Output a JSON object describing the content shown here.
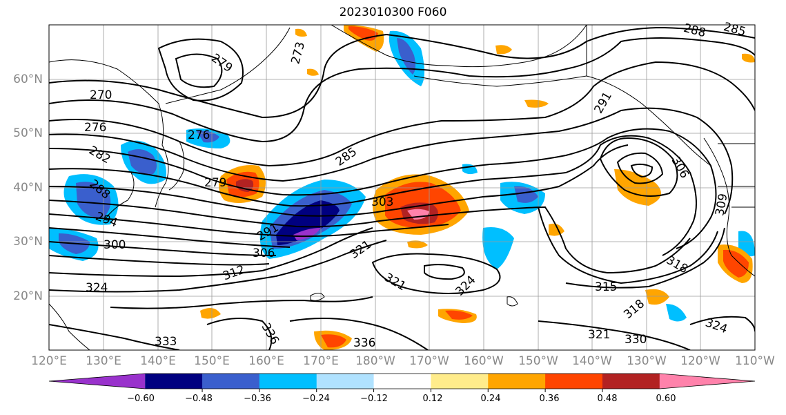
{
  "title": "2023010300 F060",
  "lat_labels": [
    "60°N",
    "50°N",
    "40°N",
    "30°N",
    "20°N"
  ],
  "lon_labels": [
    "120°E",
    "130°E",
    "140°E",
    "150°E",
    "160°E",
    "170°E",
    "180°W",
    "170°W",
    "160°W",
    "150°W",
    "140°W",
    "130°W",
    "120°W",
    "110°W"
  ],
  "colorbar": {
    "colors": [
      "#9932cc",
      "#000080",
      "#3a5fcd",
      "#00bfff",
      "#b0e2ff",
      "#ffffff",
      "#ffec8b",
      "#ffa500",
      "#ff4500",
      "#b22222",
      "#ff82ab"
    ],
    "tick_labels": [
      "−0.60",
      "−0.48",
      "−0.36",
      "−0.24",
      "−0.12",
      "0.12",
      "0.24",
      "0.36",
      "0.48",
      "0.60"
    ]
  },
  "contour_labels": [
    "270",
    "276",
    "276",
    "279",
    "279",
    "282",
    "288",
    "273",
    "285",
    "291",
    "291",
    "294",
    "300",
    "303",
    "306",
    "306",
    "309",
    "312",
    "315",
    "318",
    "318",
    "321",
    "321",
    "321",
    "324",
    "324",
    "324",
    "333",
    "336",
    "336",
    "330",
    "288",
    "285"
  ]
}
